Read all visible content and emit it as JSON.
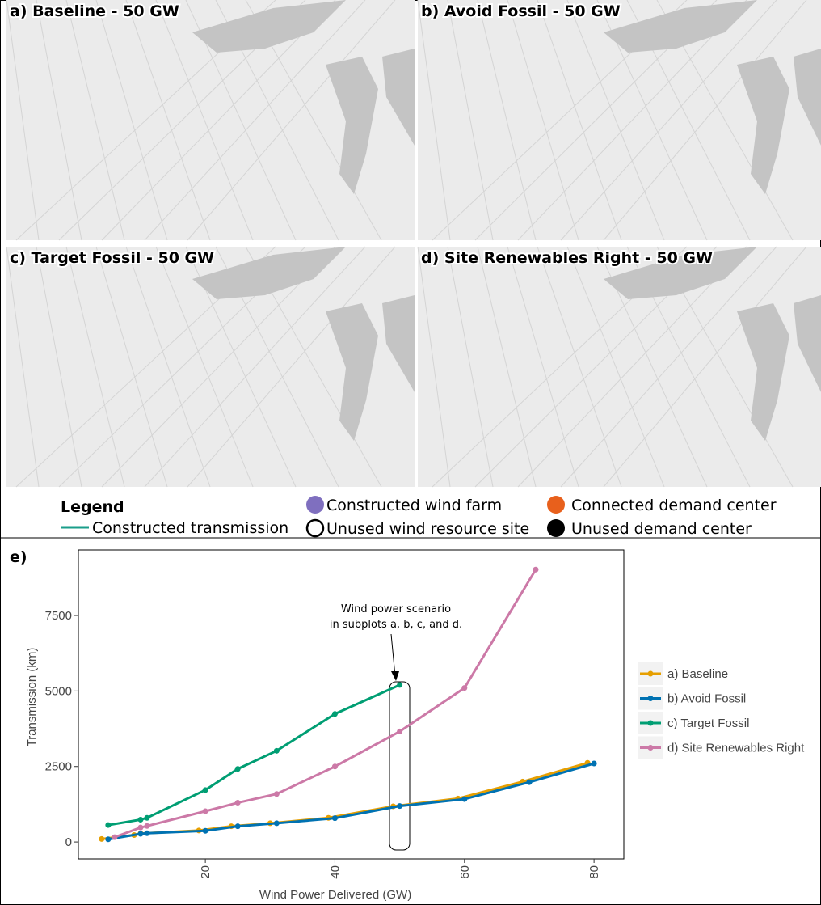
{
  "maps": [
    {
      "title": "a) Baseline - 50 GW"
    },
    {
      "title": "b) Avoid Fossil - 50 GW"
    },
    {
      "title": "c) Target Fossil - 50 GW"
    },
    {
      "title": "d) Site Renewables Right - 50 GW"
    }
  ],
  "legend": {
    "title": "Legend",
    "items": [
      "Constructed transmission",
      "Constructed wind farm",
      "Unused wind resource site",
      "Connected demand center",
      "Unused demand center"
    ]
  },
  "chart_data": {
    "type": "line",
    "panel_label": "e)",
    "x_label": "Wind Power Delivered (GW)",
    "y_label": "Transmission (km)",
    "annotation": [
      "Wind power scenario",
      "in subplots a, b, c, and d."
    ],
    "xlim": [
      0.4,
      84.6
    ],
    "ylim": [
      -560,
      9670
    ],
    "xticks": [
      20,
      40,
      60,
      80
    ],
    "yticks": [
      0,
      2500,
      5000,
      7500
    ],
    "series": [
      {
        "name": "a) Baseline",
        "color": "#e69f00",
        "x": [
          4,
          9,
          10,
          19,
          24,
          30,
          39,
          49,
          59,
          69,
          79
        ],
        "values": [
          100,
          230,
          280,
          380,
          520,
          620,
          800,
          1180,
          1440,
          2000,
          2620
        ]
      },
      {
        "name": "b) Avoid Fossil",
        "color": "#0072b2",
        "x": [
          5,
          10,
          11,
          20,
          25,
          31,
          40,
          50,
          60,
          70,
          80
        ],
        "values": [
          90,
          270,
          290,
          370,
          520,
          620,
          790,
          1190,
          1420,
          1980,
          2600
        ]
      },
      {
        "name": "c) Target Fossil",
        "color": "#009e73",
        "x": [
          5,
          10,
          11,
          20,
          25,
          31,
          40,
          50
        ],
        "values": [
          560,
          740,
          800,
          1720,
          2420,
          3020,
          4240,
          5200
        ]
      },
      {
        "name": "d) Site Renewables Right",
        "color": "#cc79a7",
        "x": [
          6,
          10,
          11,
          20,
          25,
          31,
          40,
          50,
          60,
          71
        ],
        "values": [
          160,
          480,
          530,
          1020,
          1300,
          1590,
          2500,
          3660,
          5100,
          9020
        ]
      }
    ]
  }
}
